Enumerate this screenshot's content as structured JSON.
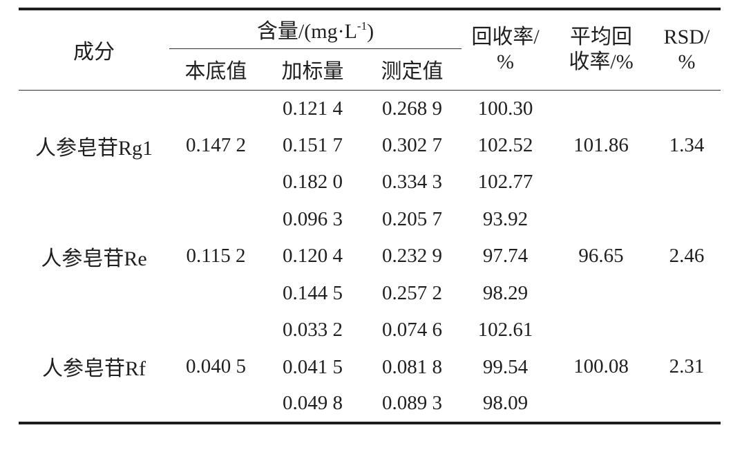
{
  "table": {
    "headers": {
      "component": "成分",
      "content_unit": {
        "prefix": "含量/(mg·L",
        "superscript": "-1",
        "suffix": ")"
      },
      "sub_columns": [
        "本底值",
        "加标量",
        "测定值"
      ],
      "recovery": [
        "回收率/",
        "%"
      ],
      "avg_recovery": [
        "平均回",
        "收率/%"
      ],
      "rsd": [
        "RSD/",
        "%"
      ]
    },
    "groups": [
      {
        "component": "人参皂苷Rg1",
        "background": "0.147 2",
        "rows": [
          {
            "spiked": "0.121 4",
            "measured": "0.268 9",
            "recovery": "100.30"
          },
          {
            "spiked": "0.151 7",
            "measured": "0.302 7",
            "recovery": "102.52"
          },
          {
            "spiked": "0.182 0",
            "measured": "0.334 3",
            "recovery": "102.77"
          }
        ],
        "avg_recovery": "101.86",
        "rsd": "1.34"
      },
      {
        "component": "人参皂苷Re",
        "background": "0.115 2",
        "rows": [
          {
            "spiked": "0.096 3",
            "measured": "0.205 7",
            "recovery": "93.92"
          },
          {
            "spiked": "0.120 4",
            "measured": "0.232 9",
            "recovery": "97.74"
          },
          {
            "spiked": "0.144 5",
            "measured": "0.257 2",
            "recovery": "98.29"
          }
        ],
        "avg_recovery": "96.65",
        "rsd": "2.46"
      },
      {
        "component": "人参皂苷Rf",
        "background": "0.040 5",
        "rows": [
          {
            "spiked": "0.033 2",
            "measured": "0.074 6",
            "recovery": "102.61"
          },
          {
            "spiked": "0.041 5",
            "measured": "0.081 8",
            "recovery": "99.54"
          },
          {
            "spiked": "0.049 8",
            "measured": "0.089 3",
            "recovery": "98.09"
          }
        ],
        "avg_recovery": "100.08",
        "rsd": "2.31"
      }
    ],
    "colors": {
      "rule": "#1d1d1d",
      "text": "#1f1f1f",
      "background": "#ffffff"
    }
  }
}
